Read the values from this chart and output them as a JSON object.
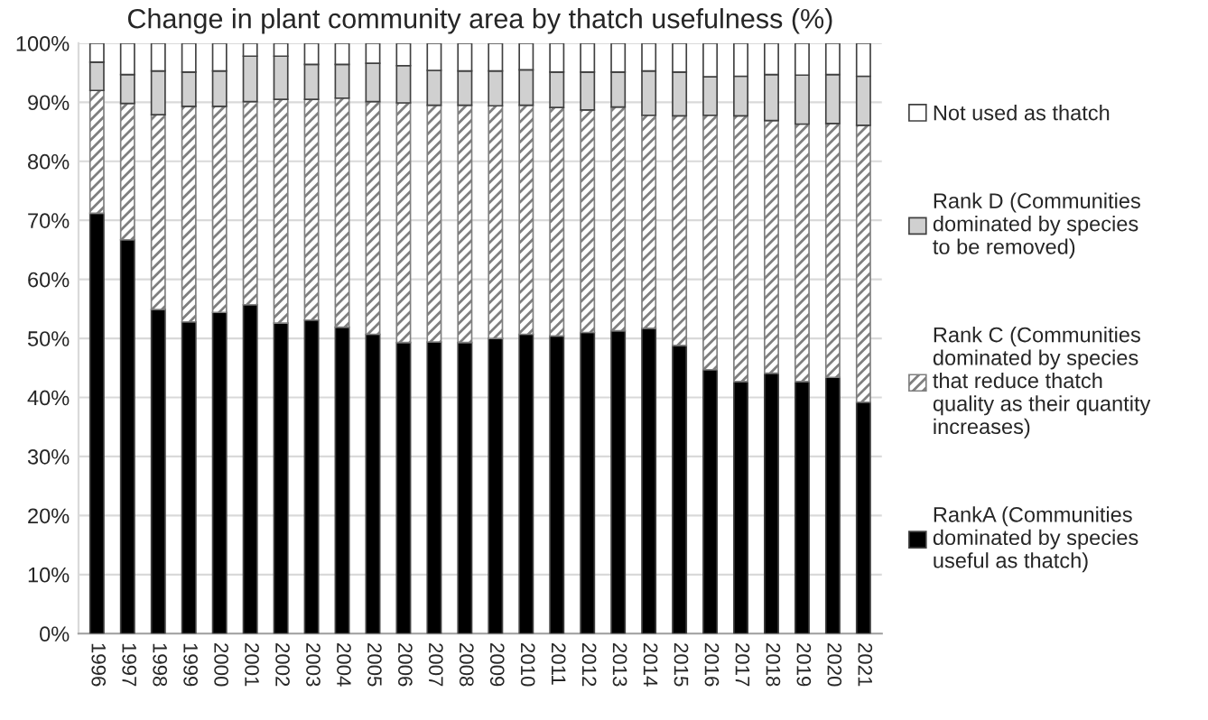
{
  "chart_data": {
    "type": "bar",
    "title": "Change in plant community area by thatch usefulness (%)",
    "categories": [
      "1996",
      "1997",
      "1998",
      "1999",
      "2000",
      "2001",
      "2002",
      "2003",
      "2004",
      "2005",
      "2006",
      "2007",
      "2008",
      "2009",
      "2010",
      "2011",
      "2012",
      "2013",
      "2014",
      "2015",
      "2016",
      "2017",
      "2018",
      "2019",
      "2020",
      "2021"
    ],
    "stacked": true,
    "series": [
      {
        "name": "RankA (Communities\ndominated by species\nuseful as thatch)",
        "color": "#000000",
        "values": [
          71.2,
          66.7,
          54.9,
          52.8,
          54.4,
          55.7,
          52.6,
          53.1,
          51.9,
          50.7,
          49.3,
          49.4,
          49.3,
          50.0,
          50.7,
          50.4,
          51.0,
          51.3,
          51.7,
          48.8,
          44.7,
          42.7,
          44.1,
          42.7,
          43.4,
          39.2
        ]
      },
      {
        "name": "Rank C (Communities\ndominated by species\nthat reduce thatch\nquality as their quantity\nincreases)",
        "color": "#7f7f7f",
        "values": [
          20.8,
          23.1,
          33.0,
          36.5,
          34.9,
          34.4,
          37.9,
          37.4,
          38.8,
          39.4,
          40.6,
          40.1,
          40.2,
          39.4,
          38.8,
          38.7,
          37.7,
          37.9,
          36.1,
          38.9,
          43.1,
          45.0,
          42.8,
          43.6,
          43.0,
          46.9
        ]
      },
      {
        "name": "Rank D (Communities\ndominated by species\nto be removed)",
        "color": "#d0d0d0",
        "values": [
          4.8,
          4.9,
          7.4,
          5.8,
          6.0,
          7.7,
          7.3,
          5.9,
          5.7,
          6.5,
          6.3,
          5.9,
          5.8,
          5.9,
          6.0,
          6.0,
          6.4,
          5.9,
          7.5,
          7.4,
          6.5,
          6.7,
          7.8,
          8.3,
          8.3,
          8.3
        ]
      },
      {
        "name": "Not used as thatch",
        "color": "#ffffff",
        "values": [
          3.2,
          5.3,
          4.7,
          4.9,
          4.7,
          2.2,
          2.2,
          3.6,
          3.6,
          3.4,
          3.8,
          4.6,
          4.7,
          4.7,
          4.5,
          4.9,
          4.9,
          4.9,
          4.7,
          4.9,
          5.7,
          5.6,
          5.3,
          5.4,
          5.3,
          5.6
        ]
      }
    ],
    "ylim": [
      0,
      100
    ],
    "yticks": [
      {
        "value": 0,
        "label": "0%"
      },
      {
        "value": 10,
        "label": "10%"
      },
      {
        "value": 20,
        "label": "20%"
      },
      {
        "value": 30,
        "label": "30%"
      },
      {
        "value": 40,
        "label": "40%"
      },
      {
        "value": 50,
        "label": "50%"
      },
      {
        "value": 60,
        "label": "60%"
      },
      {
        "value": 70,
        "label": "70%"
      },
      {
        "value": 80,
        "label": "80%"
      },
      {
        "value": 90,
        "label": "90%"
      },
      {
        "value": 100,
        "label": "100%"
      }
    ],
    "grid": "y",
    "legend": "right"
  }
}
